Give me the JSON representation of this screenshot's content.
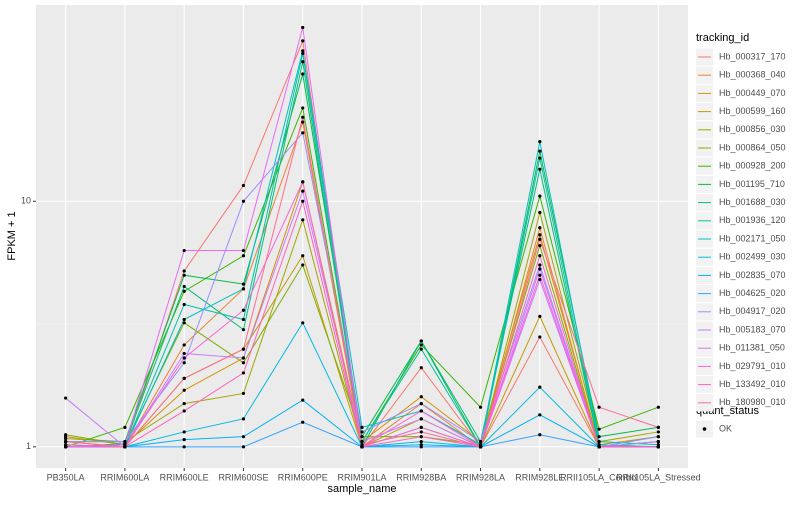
{
  "chart_data": {
    "type": "line",
    "x_label": "sample_name",
    "y_label": "FPKM + 1",
    "categories": [
      "PB350LA",
      "RRIM600LA",
      "RRIM600LE",
      "RRIM600SE",
      "RRIM600PE",
      "RRIM901LA",
      "RRIM928BA",
      "RRIM928LA",
      "RRIM928LE",
      "RRII105LA_Control",
      "RRII105LA_Stressed"
    ],
    "log_y": true,
    "grid": true,
    "ylim": [
      0.82,
      63
    ],
    "yticks": [
      1,
      10
    ],
    "legend_title": "tracking_id",
    "legend_position": "right",
    "series": [
      {
        "name": "Hb_000317_170",
        "color": "#F8766D",
        "values": [
          1.05,
          1.0,
          5.2,
          11.6,
          45,
          1.0,
          2.1,
          1.0,
          2.8,
          1.0,
          1.0
        ]
      },
      {
        "name": "Hb_000368_040",
        "color": "#EA8331",
        "values": [
          1.05,
          1.0,
          2.6,
          4.4,
          21,
          1.0,
          1.5,
          1.0,
          7.8,
          1.0,
          1.05
        ]
      },
      {
        "name": "Hb_000449_070",
        "color": "#D89000",
        "values": [
          1.1,
          1.02,
          1.7,
          2.3,
          12,
          1.05,
          1.6,
          1.05,
          7.3,
          1.02,
          1.1
        ]
      },
      {
        "name": "Hb_000599_160",
        "color": "#C09B00",
        "values": [
          1.0,
          1.0,
          1.9,
          2.5,
          6,
          1.0,
          1.3,
          1.0,
          3.4,
          1.0,
          1.0
        ]
      },
      {
        "name": "Hb_000856_030",
        "color": "#A3A500",
        "values": [
          1.08,
          1.05,
          1.5,
          1.65,
          8.4,
          1.0,
          1.2,
          1.0,
          9,
          1.05,
          1.15
        ]
      },
      {
        "name": "Hb_000864_050",
        "color": "#7CAE00",
        "values": [
          1.12,
          1.02,
          3.2,
          2.2,
          5.5,
          1.1,
          1.1,
          1.02,
          6.6,
          1.0,
          1.05
        ]
      },
      {
        "name": "Hb_000928_200",
        "color": "#39B600",
        "values": [
          1.0,
          1.2,
          4.3,
          6.0,
          24,
          1.05,
          2.6,
          1.45,
          10.5,
          1.18,
          1.45
        ]
      },
      {
        "name": "Hb_001195_710",
        "color": "#00BB4E",
        "values": [
          1.05,
          1.05,
          5.0,
          4.6,
          33,
          1.1,
          2.7,
          1.0,
          16,
          1.1,
          1.2
        ]
      },
      {
        "name": "Hb_001688_030",
        "color": "#00BF7D",
        "values": [
          1.0,
          1.03,
          4.5,
          3.0,
          37,
          1.0,
          2.7,
          1.05,
          13.5,
          1.0,
          1.1
        ]
      },
      {
        "name": "Hb_001936_120",
        "color": "#00C1A3",
        "values": [
          1.02,
          1.0,
          3.8,
          3.3,
          40,
          1.05,
          2.5,
          1.0,
          15,
          1.02,
          1.0
        ]
      },
      {
        "name": "Hb_002171_050",
        "color": "#00BFC4",
        "values": [
          1.0,
          1.0,
          3.3,
          4.4,
          41,
          1.2,
          1.4,
          1.02,
          17.5,
          1.05,
          1.02
        ]
      },
      {
        "name": "Hb_002499_030",
        "color": "#00BAE0",
        "values": [
          1.0,
          1.0,
          1.15,
          1.3,
          3.2,
          1.0,
          1.05,
          1.0,
          1.75,
          1.0,
          1.0
        ]
      },
      {
        "name": "Hb_002835_070",
        "color": "#00B0F6",
        "values": [
          1.0,
          1.0,
          1.07,
          1.1,
          1.55,
          1.0,
          1.02,
          1.0,
          1.35,
          1.0,
          1.0
        ]
      },
      {
        "name": "Hb_004625_020",
        "color": "#35A2FF",
        "values": [
          1.0,
          1.0,
          1.0,
          1.0,
          1.26,
          1.0,
          1.0,
          1.0,
          1.12,
          1.0,
          1.0
        ]
      },
      {
        "name": "Hb_004917_020",
        "color": "#9590FF",
        "values": [
          1.05,
          1.05,
          2.2,
          10,
          19,
          1.15,
          1.5,
          1.05,
          5.5,
          1.0,
          1.1
        ]
      },
      {
        "name": "Hb_005183_070",
        "color": "#C77CFF",
        "values": [
          1.58,
          1.0,
          2.4,
          2.3,
          11,
          1.05,
          1.3,
          1.0,
          4.8,
          1.0,
          1.05
        ]
      },
      {
        "name": "Hb_011381_050",
        "color": "#E76BF3",
        "values": [
          1.0,
          1.02,
          6.3,
          6.3,
          51,
          1.0,
          1.2,
          1.0,
          5.3,
          1.0,
          1.0
        ]
      },
      {
        "name": "Hb_029791_010",
        "color": "#FA62DB",
        "values": [
          1.0,
          1.0,
          2.3,
          3.6,
          12,
          1.0,
          1.4,
          1.0,
          5.0,
          1.0,
          1.0
        ]
      },
      {
        "name": "Hb_133492_010",
        "color": "#FF62BC",
        "values": [
          1.02,
          1.0,
          1.4,
          2.0,
          10,
          1.0,
          1.1,
          1.0,
          6.0,
          1.0,
          1.0
        ]
      },
      {
        "name": "Hb_180980_010",
        "color": "#FF6C91",
        "values": [
          1.05,
          1.0,
          1.9,
          2.5,
          22,
          1.02,
          1.15,
          1.0,
          7.0,
          1.45,
          1.2
        ]
      }
    ],
    "point_legend": {
      "title": "quant_status",
      "entries": [
        "OK"
      ],
      "color": "#000000"
    }
  }
}
